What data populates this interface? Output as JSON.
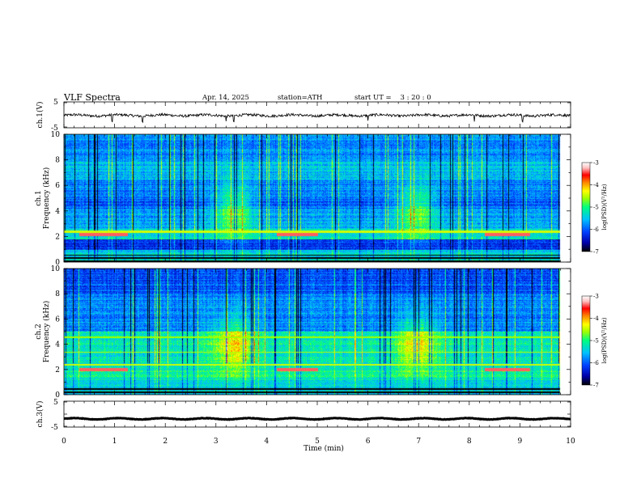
{
  "header": {
    "title": "VLF Spectra",
    "date": "Apr. 14, 2025",
    "station": "station=ATH",
    "start": "start UT =    3 : 20 : 0"
  },
  "colors": {
    "colormap": [
      "#000000",
      "#0000aa",
      "#0040ff",
      "#00c0ff",
      "#00ff80",
      "#a0ff00",
      "#ffff00",
      "#ff8000",
      "#ff0000",
      "#ffc0c0",
      "#ffffff"
    ]
  },
  "chart_data": [
    {
      "type": "line",
      "name": "ch1-waveform",
      "ylabel": "ch.1(V)",
      "ylim": [
        -5,
        5
      ],
      "yticks": [
        "5",
        "-5"
      ],
      "xlim": [
        0,
        10
      ],
      "baseline": -0.2,
      "noise_amplitude": 0.5,
      "spikes": [
        0.95,
        1.55,
        3.2,
        3.35,
        6.0,
        8.1,
        9.05
      ]
    },
    {
      "type": "heatmap",
      "name": "ch1-spectrogram",
      "ylabel": "ch.1\nFrequency (kHz)",
      "ylim": [
        0,
        10
      ],
      "yticks": [
        "0",
        "2",
        "4",
        "6",
        "8",
        "10"
      ],
      "xlim": [
        0,
        10
      ],
      "zlabel": "log(PSD)(V²/Hz)",
      "zlim": [
        -7,
        -3
      ],
      "zticks": [
        "-3",
        "-4",
        "-5",
        "-6",
        "-7"
      ],
      "bursts": [
        {
          "t": 3.35,
          "f": 4.0
        },
        {
          "t": 6.95,
          "f": 4.0
        }
      ],
      "tone_segments": [
        {
          "t0": 0.3,
          "t1": 1.25,
          "f": 2.2
        },
        {
          "t0": 4.2,
          "t1": 5.0,
          "f": 2.2
        },
        {
          "t0": 8.3,
          "t1": 9.2,
          "f": 2.2
        }
      ]
    },
    {
      "type": "heatmap",
      "name": "ch2-spectrogram",
      "ylabel": "ch.2\nFrequency (kHz)",
      "ylim": [
        0,
        10
      ],
      "yticks": [
        "0",
        "2",
        "4",
        "6",
        "8",
        "10"
      ],
      "xlim": [
        0,
        10
      ],
      "zlabel": "log(PSD)(V²/Hz)",
      "zlim": [
        -7,
        -3
      ],
      "zticks": [
        "-3",
        "-4",
        "-5",
        "-6",
        "-7"
      ],
      "bursts": [
        {
          "t": 3.35,
          "f": 4.0
        },
        {
          "t": 6.95,
          "f": 4.0
        }
      ],
      "tone_segments": [
        {
          "t0": 0.3,
          "t1": 1.25,
          "f": 2.0
        },
        {
          "t0": 4.2,
          "t1": 5.0,
          "f": 2.0
        },
        {
          "t0": 8.3,
          "t1": 9.2,
          "f": 2.0
        }
      ]
    },
    {
      "type": "line",
      "name": "ch3-waveform",
      "ylabel": "ch.3(V)",
      "ylim": [
        -5,
        5
      ],
      "yticks": [
        "5",
        "-5"
      ],
      "xlim": [
        0,
        10
      ],
      "baseline": -1.8,
      "noise_amplitude": 0.08,
      "xlabel": "Time (min)",
      "xticks": [
        "0",
        "1",
        "2",
        "3",
        "4",
        "5",
        "6",
        "7",
        "8",
        "9",
        "10"
      ]
    }
  ]
}
